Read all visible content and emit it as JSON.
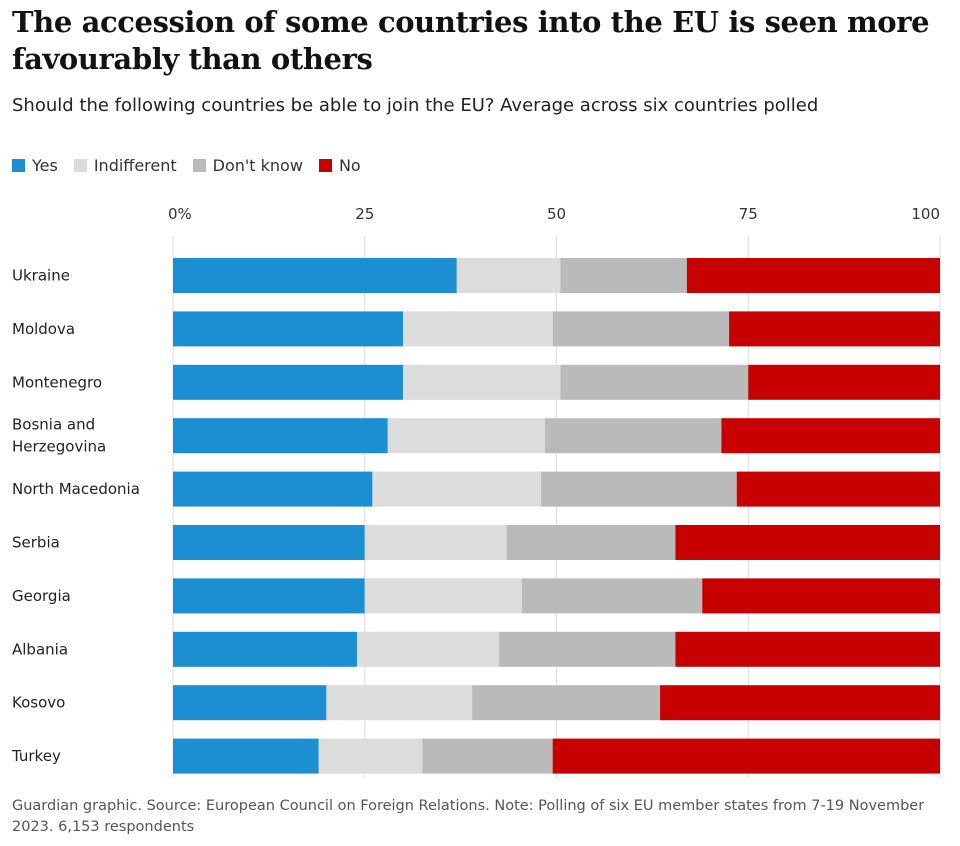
{
  "title": "The accession of some countries into the EU is seen more favourably than others",
  "subtitle": "Should the following countries be able to join the EU? Average across six countries polled",
  "footer": "Guardian graphic. Source: European Council on Foreign Relations. Note: Polling of six EU member states from 7-19 November 2023. 6,153 respondents",
  "colors": {
    "Yes": "#1b8fd2",
    "Indifferent": "#dcdcdc",
    "Don't know": "#bababa",
    "No": "#c70000"
  },
  "chart_data": {
    "type": "bar",
    "orientation": "horizontal",
    "stacked": true,
    "xlim": [
      0,
      100
    ],
    "ticks": [
      "0%",
      "25",
      "50",
      "75",
      "100"
    ],
    "categories": [
      [
        "Ukraine"
      ],
      [
        "Moldova"
      ],
      [
        "Montenegro"
      ],
      [
        "Bosnia and",
        "Herzegovina"
      ],
      [
        "North Macedonia"
      ],
      [
        "Serbia"
      ],
      [
        "Georgia"
      ],
      [
        "Albania"
      ],
      [
        "Kosovo"
      ],
      [
        "Turkey"
      ]
    ],
    "series": [
      {
        "name": "Yes",
        "values": [
          37,
          30,
          30,
          28,
          26,
          25,
          25,
          24,
          20,
          19
        ]
      },
      {
        "name": "Indifferent",
        "values": [
          13.5,
          19.5,
          20.5,
          20.5,
          22,
          18.5,
          20.5,
          18.5,
          19,
          13.5
        ]
      },
      {
        "name": "Don't know",
        "values": [
          16.5,
          23,
          24.5,
          23,
          25.5,
          22,
          23.5,
          23,
          24.5,
          17
        ]
      },
      {
        "name": "No",
        "values": [
          33,
          27.5,
          25,
          28.5,
          26.5,
          34.5,
          31,
          34.5,
          36.5,
          50.5
        ]
      }
    ],
    "legend_position": "top-left",
    "grid": true
  }
}
